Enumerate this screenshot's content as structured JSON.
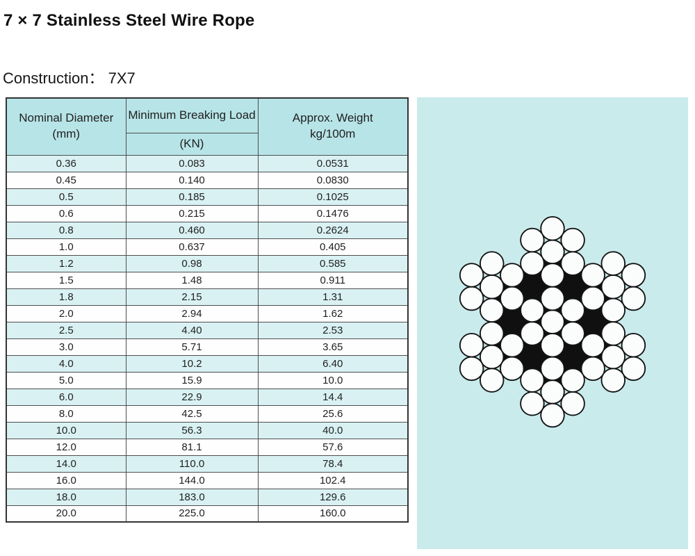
{
  "page": {
    "title": "7 × 7 Stainless Steel Wire Rope",
    "construction_label": "Construction：  7X7"
  },
  "table": {
    "headers": [
      {
        "line1": "Nominal Diameter",
        "line2": "(mm)"
      },
      {
        "line1": "Minimum Breaking Load",
        "line2": "(KN)"
      },
      {
        "line1": "Approx. Weight",
        "line2": "kg/100m"
      }
    ],
    "rows": [
      [
        "0.36",
        "0.083",
        "0.0531"
      ],
      [
        "0.45",
        "0.140",
        "0.0830"
      ],
      [
        "0.5",
        "0.185",
        "0.1025"
      ],
      [
        "0.6",
        "0.215",
        "0.1476"
      ],
      [
        "0.8",
        "0.460",
        "0.2624"
      ],
      [
        "1.0",
        "0.637",
        "0.405"
      ],
      [
        "1.2",
        "0.98",
        "0.585"
      ],
      [
        "1.5",
        "1.48",
        "0.911"
      ],
      [
        "1.8",
        "2.15",
        "1.31"
      ],
      [
        "2.0",
        "2.94",
        "1.62"
      ],
      [
        "2.5",
        "4.40",
        "2.53"
      ],
      [
        "3.0",
        "5.71",
        "3.65"
      ],
      [
        "4.0",
        "10.2",
        "6.40"
      ],
      [
        "5.0",
        "15.9",
        "10.0"
      ],
      [
        "6.0",
        "22.9",
        "14.4"
      ],
      [
        "8.0",
        "42.5",
        "25.6"
      ],
      [
        "10.0",
        "56.3",
        "40.0"
      ],
      [
        "12.0",
        "81.1",
        "57.6"
      ],
      [
        "14.0",
        "110.0",
        "78.4"
      ],
      [
        "16.0",
        "144.0",
        "102.4"
      ],
      [
        "18.0",
        "183.0",
        "129.6"
      ],
      [
        "20.0",
        "225.0",
        "160.0"
      ]
    ]
  },
  "diagram": {
    "name": "7x7-wire-rope-cross-section",
    "strands": 7,
    "wires_per_strand": 7
  },
  "colors": {
    "header_bg": "#b7e4e7",
    "row_stripe": "#d9f1f3",
    "row_plain": "#fefefe",
    "panel_bg": "#c9ebec",
    "border": "#4d4d4d",
    "text": "#1f1f1f"
  }
}
